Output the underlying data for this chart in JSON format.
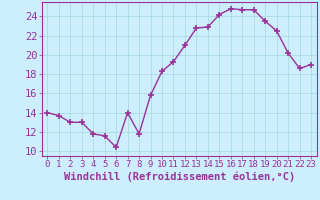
{
  "xlabel": "Windchill (Refroidissement éolien,°C)",
  "x": [
    0,
    1,
    2,
    3,
    4,
    5,
    6,
    7,
    8,
    9,
    10,
    11,
    12,
    13,
    14,
    15,
    16,
    17,
    18,
    19,
    20,
    21,
    22,
    23
  ],
  "y": [
    14.0,
    13.7,
    13.0,
    13.0,
    11.8,
    11.6,
    10.4,
    14.0,
    11.8,
    15.8,
    18.3,
    19.3,
    21.0,
    22.8,
    22.9,
    24.2,
    24.8,
    24.7,
    24.7,
    23.5,
    22.5,
    20.2,
    18.6,
    19.0
  ],
  "line_color": "#993399",
  "marker": "+",
  "marker_size": 4,
  "linewidth": 1.0,
  "bg_color": "#cceeff",
  "grid_color": "#aadddd",
  "tick_color": "#993399",
  "label_color": "#993399",
  "ylim": [
    9.5,
    25.5
  ],
  "yticks": [
    10,
    12,
    14,
    16,
    18,
    20,
    22,
    24
  ],
  "xlim": [
    -0.5,
    23.5
  ],
  "xticks": [
    0,
    1,
    2,
    3,
    4,
    5,
    6,
    7,
    8,
    9,
    10,
    11,
    12,
    13,
    14,
    15,
    16,
    17,
    18,
    19,
    20,
    21,
    22,
    23
  ],
  "xtick_labels": [
    "0",
    "1",
    "2",
    "3",
    "4",
    "5",
    "6",
    "7",
    "8",
    "9",
    "10",
    "11",
    "12",
    "13",
    "14",
    "15",
    "16",
    "17",
    "18",
    "19",
    "20",
    "21",
    "22",
    "23"
  ],
  "xlabel_fontsize": 7.5,
  "ytick_fontsize": 7.5,
  "xtick_fontsize": 6.5
}
